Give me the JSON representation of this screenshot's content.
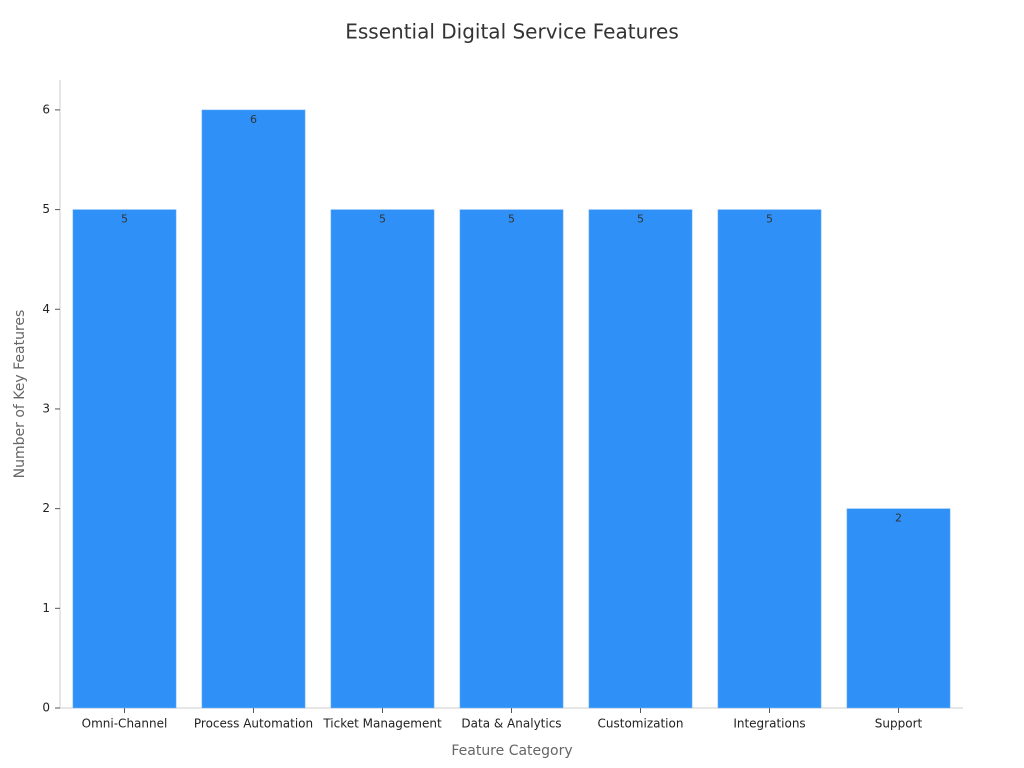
{
  "chart_data": {
    "type": "bar",
    "title": "Essential Digital Service Features",
    "x_label": "Feature Category",
    "y_label": "Number of Key Features",
    "categories": [
      "Omni-Channel",
      "Process Automation",
      "Ticket Management",
      "Data & Analytics",
      "Customization",
      "Integrations",
      "Support"
    ],
    "values": [
      5,
      6,
      5,
      5,
      5,
      5,
      2
    ],
    "color": "#2f91f7",
    "ylim": [
      0,
      6.3
    ],
    "yticks": [
      0,
      1,
      2,
      3,
      4,
      5,
      6
    ],
    "grid": false,
    "data_labels": true
  }
}
